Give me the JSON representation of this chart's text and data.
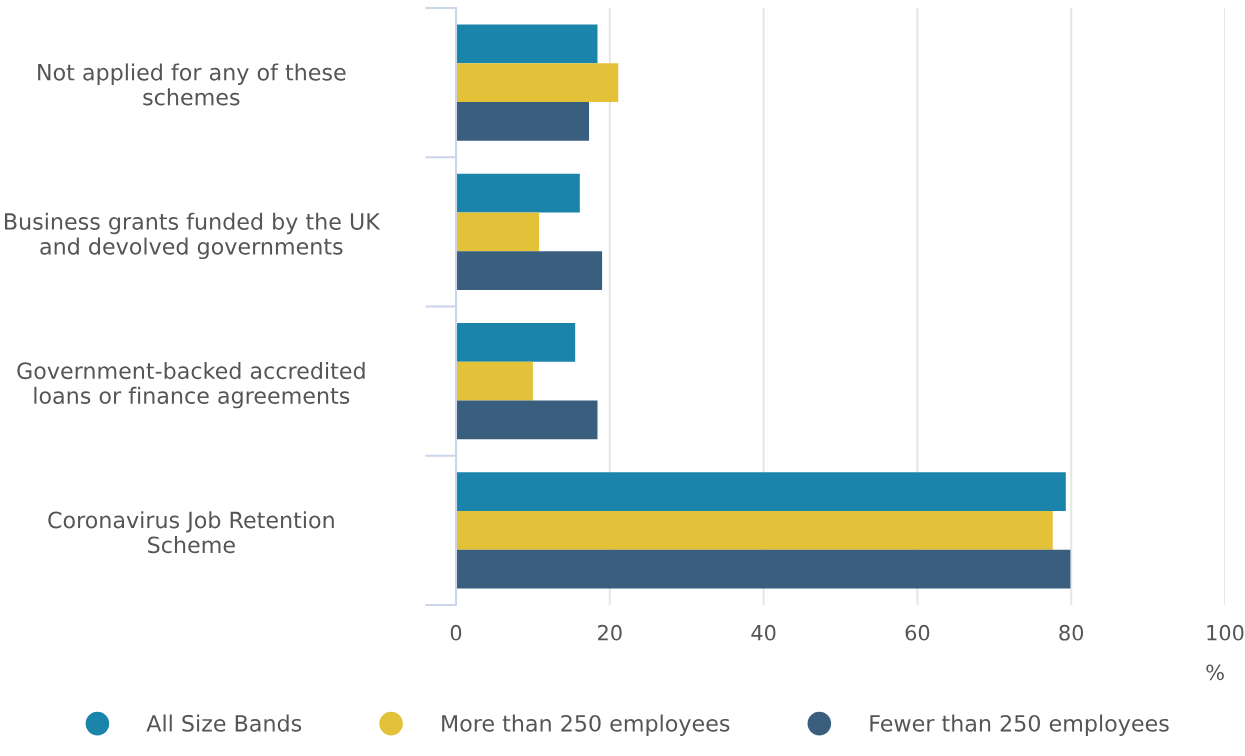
{
  "chart_data": {
    "type": "bar",
    "orientation": "horizontal",
    "categories": [
      "Not applied for any of these schemes",
      "Business grants funded by the UK and devolved governments",
      "Government-backed accredited loans or finance agreements",
      "Coronavirus Job Retention Scheme"
    ],
    "series": [
      {
        "name": "All Size Bands",
        "color": "#1a84ab",
        "values": [
          18.4,
          16.1,
          15.5,
          79.3
        ]
      },
      {
        "name": "More than 250 employees",
        "color": "#e3c23a",
        "values": [
          21.1,
          10.8,
          10.0,
          77.6
        ]
      },
      {
        "name": "Fewer than 250 employees",
        "color": "#3a5e7e",
        "values": [
          17.3,
          19.0,
          18.4,
          79.9
        ]
      }
    ],
    "xlabel": "%",
    "xlim": [
      0,
      100
    ],
    "xticks": [
      0,
      20,
      40,
      60,
      80,
      100
    ],
    "grid": "x",
    "legend": "bottom"
  }
}
